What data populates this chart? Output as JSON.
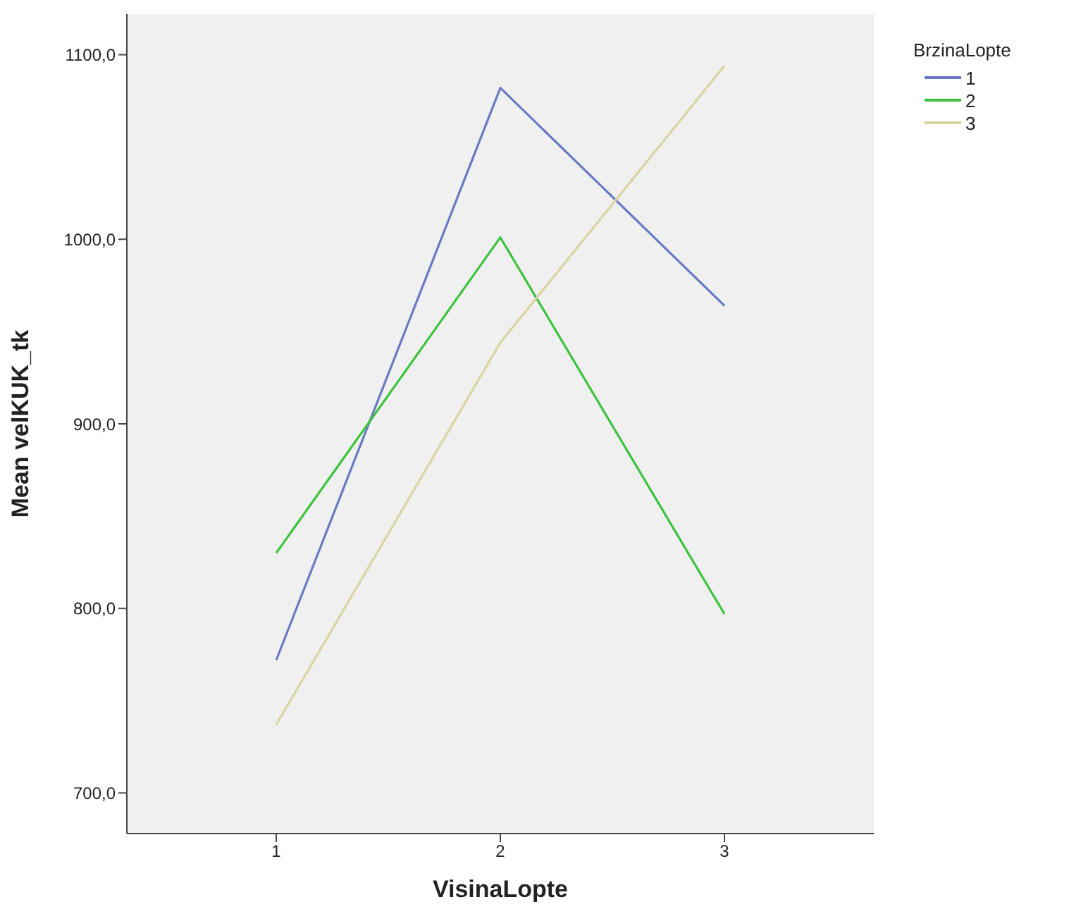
{
  "chart_data": {
    "type": "line",
    "xlabel": "VisinaLopte",
    "ylabel": "Mean velKUK_tk",
    "legend_title": "BrzinaLopte",
    "categories": [
      "1",
      "2",
      "3"
    ],
    "series": [
      {
        "name": "1",
        "color": "#6a79c2",
        "values": [
          772,
          1082,
          964
        ]
      },
      {
        "name": "2",
        "color": "#3cc43c",
        "values": [
          830,
          1001,
          797
        ]
      },
      {
        "name": "3",
        "color": "#d9d5a2",
        "values": [
          737,
          944,
          1094
        ]
      }
    ],
    "ylim": [
      678,
      1122
    ],
    "yticks": [
      {
        "value": 700,
        "label": "700,0"
      },
      {
        "value": 800,
        "label": "800,0"
      },
      {
        "value": 900,
        "label": "900,0"
      },
      {
        "value": 1000,
        "label": "1000,0"
      },
      {
        "value": 1100,
        "label": "1100,0"
      }
    ],
    "grid": false,
    "legend": "top right",
    "marker": "none",
    "line_style": "solid"
  }
}
